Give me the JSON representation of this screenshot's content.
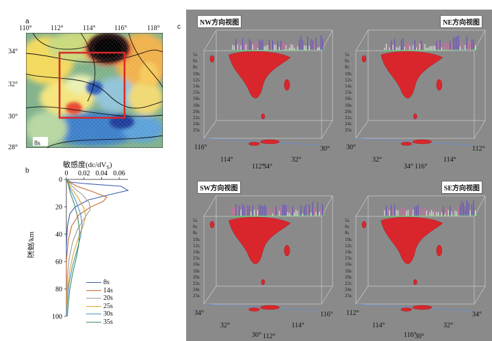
{
  "panel_a": {
    "label": "a",
    "lon_ticks": [
      "110°",
      "112°",
      "114°",
      "116°",
      "118°"
    ],
    "lat_ticks": [
      "34°",
      "32°",
      "30°",
      "28°"
    ],
    "period_tag": "8s"
  },
  "panel_b": {
    "label": "b",
    "xlabel": "敏感度(dc/dVS)",
    "xlabel_main": "敏感度(dc/dV",
    "xlabel_sub": "S",
    "xlabel_tail": ")",
    "ylabel": "深度/km",
    "xticks": [
      "0",
      "0.02",
      "0.04",
      "0.06"
    ],
    "yticks": [
      "0",
      "20",
      "40",
      "60",
      "80",
      "100"
    ]
  },
  "panel_c": {
    "label": "c",
    "depth_ticks": [
      "5s",
      "6s",
      "8s",
      "10s",
      "12s",
      "14s",
      "15s",
      "16s",
      "18s",
      "20s",
      "22s",
      "24s",
      "25s"
    ],
    "views": [
      {
        "title": "NW方向视图",
        "axis": [
          "116°",
          "114°",
          "112°",
          "34°",
          "32°",
          "30°"
        ]
      },
      {
        "title": "NE方向视图",
        "axis": [
          "30°",
          "32°",
          "34°",
          "116°",
          "114°",
          "112°"
        ]
      },
      {
        "title": "SW方向视图",
        "axis": [
          "34°",
          "32°",
          "30°",
          "112°",
          "114°",
          "116°"
        ]
      },
      {
        "title": "SE方向视图",
        "axis": [
          "112°",
          "114°",
          "116°",
          "30°",
          "32°",
          "34°"
        ]
      }
    ]
  },
  "chart_data": {
    "type": "line",
    "xlabel": "敏感度(dc/dVS)",
    "ylabel": "深度/km",
    "xlim": [
      0,
      0.07
    ],
    "ylim": [
      0,
      100
    ],
    "legend_placement": "bottom-right",
    "series": [
      {
        "name": "8s",
        "color": "#3a5ca8",
        "points": [
          [
            0,
            0
          ],
          [
            0.005,
            2
          ],
          [
            0.02,
            3
          ],
          [
            0.062,
            5
          ],
          [
            0.07,
            8
          ],
          [
            0.05,
            11
          ],
          [
            0.025,
            15
          ],
          [
            0.01,
            20
          ],
          [
            0.004,
            25
          ],
          [
            0.001,
            35
          ],
          [
            0,
            50
          ],
          [
            0,
            100
          ]
        ]
      },
      {
        "name": "14s",
        "color": "#c8682a",
        "points": [
          [
            0,
            0
          ],
          [
            0.004,
            2
          ],
          [
            0.012,
            5
          ],
          [
            0.03,
            9
          ],
          [
            0.046,
            13
          ],
          [
            0.042,
            16
          ],
          [
            0.028,
            20
          ],
          [
            0.014,
            26
          ],
          [
            0.006,
            34
          ],
          [
            0.002,
            45
          ],
          [
            0,
            60
          ],
          [
            0,
            100
          ]
        ]
      },
      {
        "name": "20s",
        "color": "#9a9a9a",
        "points": [
          [
            0,
            0
          ],
          [
            0.003,
            2
          ],
          [
            0.008,
            6
          ],
          [
            0.018,
            11
          ],
          [
            0.026,
            17
          ],
          [
            0.027,
            22
          ],
          [
            0.021,
            28
          ],
          [
            0.013,
            36
          ],
          [
            0.007,
            46
          ],
          [
            0.003,
            58
          ],
          [
            0.001,
            72
          ],
          [
            0,
            100
          ]
        ]
      },
      {
        "name": "25s",
        "color": "#d9a629",
        "points": [
          [
            0,
            0
          ],
          [
            0.002,
            2
          ],
          [
            0.006,
            7
          ],
          [
            0.013,
            13
          ],
          [
            0.02,
            21
          ],
          [
            0.022,
            27
          ],
          [
            0.019,
            34
          ],
          [
            0.013,
            44
          ],
          [
            0.008,
            54
          ],
          [
            0.004,
            66
          ],
          [
            0.001,
            82
          ],
          [
            0,
            100
          ]
        ]
      },
      {
        "name": "30s",
        "color": "#4a8fc9",
        "points": [
          [
            0,
            0
          ],
          [
            0.002,
            3
          ],
          [
            0.005,
            8
          ],
          [
            0.011,
            16
          ],
          [
            0.016,
            25
          ],
          [
            0.018,
            33
          ],
          [
            0.016,
            42
          ],
          [
            0.012,
            52
          ],
          [
            0.007,
            63
          ],
          [
            0.003,
            76
          ],
          [
            0.001,
            90
          ],
          [
            0,
            100
          ]
        ]
      },
      {
        "name": "35s",
        "color": "#3d8a57",
        "points": [
          [
            0,
            0
          ],
          [
            0.002,
            3
          ],
          [
            0.004,
            9
          ],
          [
            0.009,
            18
          ],
          [
            0.013,
            28
          ],
          [
            0.015,
            38
          ],
          [
            0.014,
            48
          ],
          [
            0.011,
            58
          ],
          [
            0.007,
            69
          ],
          [
            0.004,
            80
          ],
          [
            0.002,
            92
          ],
          [
            0.001,
            100
          ]
        ]
      }
    ]
  }
}
